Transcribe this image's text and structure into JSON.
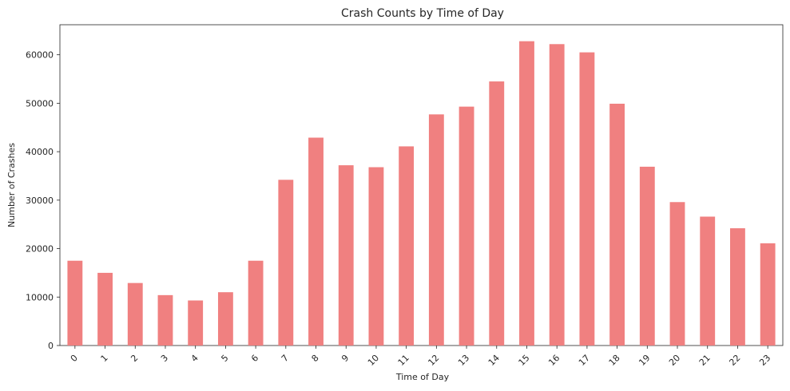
{
  "chart_data": {
    "type": "bar",
    "title": "Crash Counts by Time of Day",
    "xlabel": "Time of Day",
    "ylabel": "Number of Crashes",
    "categories": [
      "0",
      "1",
      "2",
      "3",
      "4",
      "5",
      "6",
      "7",
      "8",
      "9",
      "10",
      "11",
      "12",
      "13",
      "14",
      "15",
      "16",
      "17",
      "18",
      "19",
      "20",
      "21",
      "22",
      "23"
    ],
    "values": [
      17500,
      15000,
      12900,
      10400,
      9300,
      11000,
      17500,
      34200,
      42900,
      37200,
      36800,
      41100,
      47700,
      49300,
      54500,
      62800,
      62200,
      60500,
      49900,
      36900,
      29600,
      26600,
      24200,
      21100
    ],
    "yticks": [
      0,
      10000,
      20000,
      30000,
      40000,
      50000,
      60000
    ],
    "ylim": [
      0,
      66200
    ],
    "grid": false,
    "bar_color": "#f08080",
    "axis_color": "#262626"
  }
}
